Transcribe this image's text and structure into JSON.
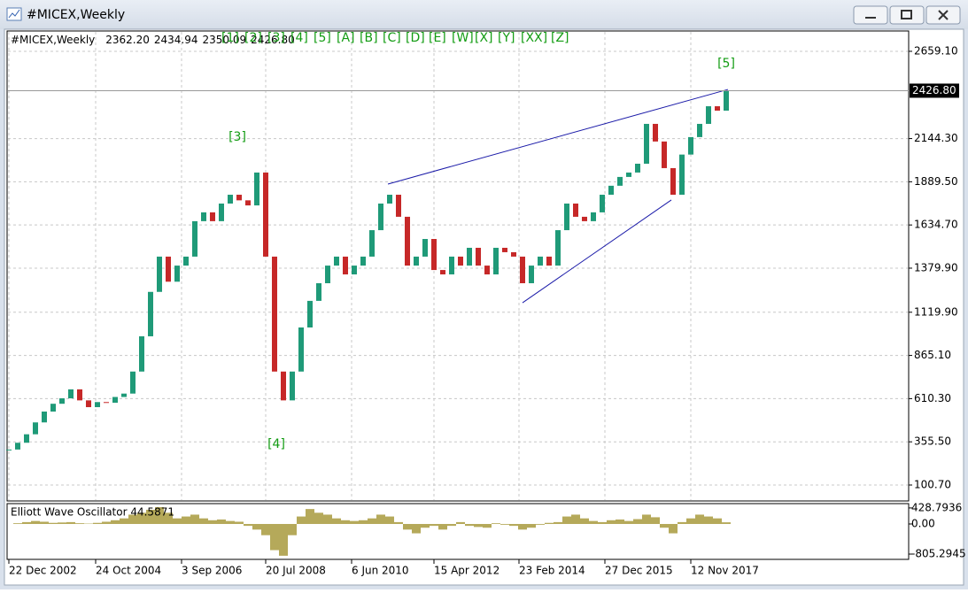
{
  "window": {
    "title": "#MICEX,Weekly"
  },
  "header": {
    "symbol": "#MICEX,Weekly",
    "ohlc": [
      "2362.20",
      "2434.94",
      "2350.09",
      "2426.80"
    ]
  },
  "wave_buttons": [
    "[1]",
    "[2]",
    "[3]",
    "[4]",
    "[5]",
    "[A]",
    "[B]",
    "[C]",
    "[D]",
    "[E]",
    "[W]",
    "[X]",
    "[Y]",
    "[XX]",
    "[Z]"
  ],
  "chart_data": [
    {
      "type": "candlestick",
      "up_color": "#1f9a78",
      "down_color": "#c62828",
      "ylim": [
        11.9,
        2779
      ],
      "yticks": [
        {
          "value": 2659.1,
          "label": "2659.10"
        },
        {
          "value": 2144.3,
          "label": "2144.30"
        },
        {
          "value": 1889.5,
          "label": "1889.50"
        },
        {
          "value": 1634.7,
          "label": "1634.70"
        },
        {
          "value": 1379.9,
          "label": "1379.90"
        },
        {
          "value": 1119.9,
          "label": "1119.90"
        },
        {
          "value": 865.1,
          "label": "865.10"
        },
        {
          "value": 610.3,
          "label": "610.30"
        },
        {
          "value": 355.5,
          "label": "355.50"
        },
        {
          "value": 100.7,
          "label": "100.70"
        }
      ],
      "xticks": [
        {
          "value": 0,
          "label": "22 Dec 2002"
        },
        {
          "value": 9.8,
          "label": "24 Oct 2004"
        },
        {
          "value": 19.5,
          "label": "3 Sep 2006"
        },
        {
          "value": 29,
          "label": "20 Jul 2008"
        },
        {
          "value": 38.7,
          "label": "6 Jun 2010"
        },
        {
          "value": 48,
          "label": "15 Apr 2012"
        },
        {
          "value": 57.6,
          "label": "23 Feb 2014"
        },
        {
          "value": 67.3,
          "label": "27 Dec 2015"
        },
        {
          "value": 77,
          "label": "12 Nov 2017"
        }
      ],
      "grid": true,
      "last_price": {
        "value": 2426.8,
        "label": "2426.80"
      },
      "series": [
        {
          "values": [
            310,
            350,
            400,
            470,
            534,
            580,
            612,
            665,
            600,
            560,
            590,
            586,
            620,
            640,
            770,
            978,
            1240,
            1448,
            1300,
            1395,
            1448,
            1657,
            1709,
            1657,
            1761,
            1813,
            1780,
            1750,
            1944,
            1448,
            770,
            600,
            770,
            1030,
            1187,
            1291,
            1395,
            1448,
            1343,
            1395,
            1448,
            1604,
            1761,
            1813,
            1683,
            1395,
            1448,
            1552,
            1369,
            1343,
            1448,
            1395,
            1500,
            1395,
            1343,
            1500,
            1474,
            1448,
            1291,
            1395,
            1448,
            1395,
            1604,
            1761,
            1683,
            1657,
            1709,
            1813,
            1866,
            1918,
            1944,
            1996,
            2231,
            2127,
            1970,
            1813,
            2050,
            2153,
            2231,
            2335,
            2309,
            2427
          ]
        }
      ],
      "trend_lines": [
        {
          "x": [
            42.8,
            81.2
          ],
          "y": [
            1876,
            2434
          ],
          "color": "#1a1aa8"
        },
        {
          "x": [
            58,
            74.8
          ],
          "y": [
            1176,
            1782
          ],
          "color": "#1a1aa8"
        }
      ],
      "wave_labels": [
        {
          "text": "[3]",
          "x": 25.8,
          "y": 2152
        },
        {
          "text": "[4]",
          "x": 30.2,
          "y": 341
        },
        {
          "text": "[5]",
          "x": 81,
          "y": 2586
        }
      ]
    },
    {
      "type": "histogram-area",
      "title": "Elliott Wave Oscillator 44.5871",
      "color": "#b5a95a",
      "ylim": [
        -947,
        545
      ],
      "yticks": [
        428.7936,
        {
          "value": 0,
          "label": "0.00"
        },
        -805.2945
      ],
      "series": [
        {
          "values": [
            0,
            20,
            50,
            80,
            60,
            30,
            40,
            50,
            20,
            10,
            30,
            60,
            100,
            150,
            250,
            300,
            380,
            450,
            300,
            150,
            200,
            250,
            150,
            100,
            120,
            80,
            60,
            -50,
            -150,
            -300,
            -700,
            -850,
            -300,
            200,
            400,
            300,
            250,
            150,
            100,
            80,
            100,
            150,
            250,
            200,
            50,
            -150,
            -250,
            -100,
            -50,
            -150,
            -50,
            50,
            -50,
            -80,
            -100,
            20,
            -20,
            -50,
            -150,
            -100,
            -20,
            30,
            50,
            200,
            250,
            150,
            80,
            50,
            100,
            120,
            80,
            130,
            250,
            180,
            -100,
            -250,
            50,
            150,
            250,
            200,
            150,
            44.6
          ]
        }
      ]
    }
  ]
}
